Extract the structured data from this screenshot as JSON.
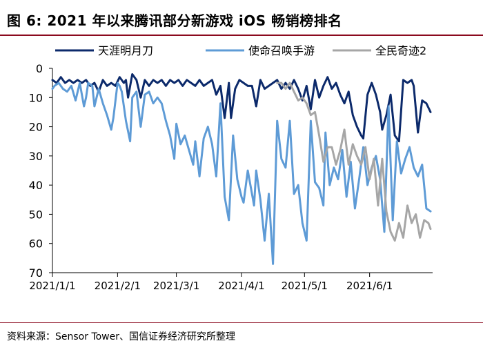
{
  "title": "图 6:  2021 年以来腾讯部分新游戏 iOS  畅销榜排名",
  "source": "资料来源：Sensor Tower、国信证券经济研究所整理",
  "chart_data": {
    "type": "line",
    "title": "",
    "xlabel": "",
    "ylabel": "",
    "x_range": [
      "2021-01-01",
      "2021-07-01"
    ],
    "x_ticks": [
      "2021/1/1",
      "2021/2/1",
      "2021/3/1",
      "2021/4/1",
      "2021/5/1",
      "2021/6/1"
    ],
    "y_ticks": [
      0,
      10,
      20,
      30,
      40,
      50,
      60,
      70
    ],
    "ylim": [
      0,
      70
    ],
    "y_inverted": true,
    "legend_position": "top",
    "series": [
      {
        "name": "天涯明月刀",
        "color": "#0c2a6b",
        "points": [
          [
            "2021-01-01",
            4
          ],
          [
            "2021-01-03",
            5
          ],
          [
            "2021-01-05",
            3
          ],
          [
            "2021-01-07",
            5
          ],
          [
            "2021-01-09",
            4
          ],
          [
            "2021-01-11",
            5
          ],
          [
            "2021-01-13",
            4
          ],
          [
            "2021-01-15",
            5
          ],
          [
            "2021-01-17",
            4
          ],
          [
            "2021-01-19",
            6
          ],
          [
            "2021-01-21",
            5
          ],
          [
            "2021-01-23",
            8
          ],
          [
            "2021-01-25",
            4
          ],
          [
            "2021-01-27",
            6
          ],
          [
            "2021-01-29",
            5
          ],
          [
            "2021-01-31",
            6
          ],
          [
            "2021-02-02",
            3
          ],
          [
            "2021-02-04",
            5
          ],
          [
            "2021-02-05",
            4
          ],
          [
            "2021-02-06",
            10
          ],
          [
            "2021-02-08",
            2
          ],
          [
            "2021-02-10",
            4
          ],
          [
            "2021-02-12",
            10
          ],
          [
            "2021-02-14",
            4
          ],
          [
            "2021-02-16",
            6
          ],
          [
            "2021-02-18",
            4
          ],
          [
            "2021-02-20",
            5
          ],
          [
            "2021-02-22",
            4
          ],
          [
            "2021-02-24",
            6
          ],
          [
            "2021-02-26",
            4
          ],
          [
            "2021-02-28",
            5
          ],
          [
            "2021-03-02",
            4
          ],
          [
            "2021-03-04",
            6
          ],
          [
            "2021-03-06",
            4
          ],
          [
            "2021-03-08",
            5
          ],
          [
            "2021-03-10",
            6
          ],
          [
            "2021-03-12",
            4
          ],
          [
            "2021-03-14",
            6
          ],
          [
            "2021-03-16",
            5
          ],
          [
            "2021-03-18",
            4
          ],
          [
            "2021-03-20",
            9
          ],
          [
            "2021-03-22",
            6
          ],
          [
            "2021-03-24",
            17
          ],
          [
            "2021-03-26",
            5
          ],
          [
            "2021-03-27",
            17
          ],
          [
            "2021-03-29",
            7
          ],
          [
            "2021-03-31",
            4
          ],
          [
            "2021-04-02",
            5
          ],
          [
            "2021-04-04",
            6
          ],
          [
            "2021-04-06",
            6
          ],
          [
            "2021-04-08",
            13
          ],
          [
            "2021-04-10",
            4
          ],
          [
            "2021-04-12",
            7
          ],
          [
            "2021-04-14",
            6
          ],
          [
            "2021-04-16",
            5
          ],
          [
            "2021-04-18",
            4
          ],
          [
            "2021-04-20",
            7
          ],
          [
            "2021-04-22",
            5
          ],
          [
            "2021-04-24",
            7
          ],
          [
            "2021-04-26",
            4
          ],
          [
            "2021-04-28",
            7
          ],
          [
            "2021-04-30",
            11
          ],
          [
            "2021-05-02",
            6
          ],
          [
            "2021-05-04",
            14
          ],
          [
            "2021-05-06",
            4
          ],
          [
            "2021-05-08",
            10
          ],
          [
            "2021-05-10",
            6
          ],
          [
            "2021-05-12",
            3
          ],
          [
            "2021-05-14",
            7
          ],
          [
            "2021-05-16",
            5
          ],
          [
            "2021-05-18",
            9
          ],
          [
            "2021-05-20",
            12
          ],
          [
            "2021-05-22",
            8
          ],
          [
            "2021-05-24",
            16
          ],
          [
            "2021-05-26",
            20
          ],
          [
            "2021-05-28",
            23
          ],
          [
            "2021-05-29",
            24
          ],
          [
            "2021-05-31",
            9
          ],
          [
            "2021-06-02",
            5
          ],
          [
            "2021-06-04",
            9
          ],
          [
            "2021-06-06",
            15
          ],
          [
            "2021-06-07",
            21
          ],
          [
            "2021-06-09",
            16
          ],
          [
            "2021-06-11",
            9
          ],
          [
            "2021-06-13",
            23
          ],
          [
            "2021-06-15",
            25
          ],
          [
            "2021-06-17",
            4
          ],
          [
            "2021-06-19",
            5
          ],
          [
            "2021-06-21",
            4
          ],
          [
            "2021-06-22",
            6
          ],
          [
            "2021-06-24",
            22
          ],
          [
            "2021-06-26",
            11
          ],
          [
            "2021-06-28",
            12
          ],
          [
            "2021-06-30",
            15
          ]
        ]
      },
      {
        "name": "使命召唤手游",
        "color": "#5e9bd6",
        "points": [
          [
            "2021-01-01",
            7
          ],
          [
            "2021-01-02",
            6
          ],
          [
            "2021-01-04",
            5
          ],
          [
            "2021-01-06",
            7
          ],
          [
            "2021-01-08",
            8
          ],
          [
            "2021-01-10",
            6
          ],
          [
            "2021-01-12",
            11
          ],
          [
            "2021-01-14",
            5
          ],
          [
            "2021-01-16",
            13
          ],
          [
            "2021-01-17",
            10
          ],
          [
            "2021-01-18",
            5
          ],
          [
            "2021-01-20",
            6
          ],
          [
            "2021-01-21",
            13
          ],
          [
            "2021-01-23",
            7
          ],
          [
            "2021-01-25",
            12
          ],
          [
            "2021-01-27",
            16
          ],
          [
            "2021-01-29",
            21
          ],
          [
            "2021-01-30",
            17
          ],
          [
            "2021-02-01",
            5
          ],
          [
            "2021-02-02",
            6
          ],
          [
            "2021-02-03",
            8
          ],
          [
            "2021-02-05",
            18
          ],
          [
            "2021-02-07",
            25
          ],
          [
            "2021-02-08",
            10
          ],
          [
            "2021-02-10",
            8
          ],
          [
            "2021-02-12",
            20
          ],
          [
            "2021-02-14",
            9
          ],
          [
            "2021-02-16",
            8
          ],
          [
            "2021-02-18",
            12
          ],
          [
            "2021-02-20",
            10
          ],
          [
            "2021-02-22",
            12
          ],
          [
            "2021-02-24",
            18
          ],
          [
            "2021-02-26",
            23
          ],
          [
            "2021-02-28",
            31
          ],
          [
            "2021-03-01",
            19
          ],
          [
            "2021-03-03",
            26
          ],
          [
            "2021-03-05",
            23
          ],
          [
            "2021-03-07",
            28
          ],
          [
            "2021-03-09",
            33
          ],
          [
            "2021-03-10",
            25
          ],
          [
            "2021-03-12",
            37
          ],
          [
            "2021-03-14",
            24
          ],
          [
            "2021-03-16",
            20
          ],
          [
            "2021-03-18",
            26
          ],
          [
            "2021-03-20",
            37
          ],
          [
            "2021-03-22",
            12
          ],
          [
            "2021-03-24",
            44
          ],
          [
            "2021-03-26",
            52
          ],
          [
            "2021-03-28",
            23
          ],
          [
            "2021-03-30",
            38
          ],
          [
            "2021-04-01",
            44
          ],
          [
            "2021-04-02",
            46
          ],
          [
            "2021-04-04",
            35
          ],
          [
            "2021-04-06",
            43
          ],
          [
            "2021-04-07",
            47
          ],
          [
            "2021-04-08",
            35
          ],
          [
            "2021-04-10",
            45
          ],
          [
            "2021-04-12",
            59
          ],
          [
            "2021-04-14",
            43
          ],
          [
            "2021-04-16",
            67
          ],
          [
            "2021-04-18",
            18
          ],
          [
            "2021-04-20",
            31
          ],
          [
            "2021-04-22",
            34
          ],
          [
            "2021-04-24",
            18
          ],
          [
            "2021-04-26",
            43
          ],
          [
            "2021-04-28",
            40
          ],
          [
            "2021-04-30",
            53
          ],
          [
            "2021-05-02",
            59
          ],
          [
            "2021-05-04",
            18
          ],
          [
            "2021-05-06",
            39
          ],
          [
            "2021-05-08",
            41
          ],
          [
            "2021-05-10",
            47
          ],
          [
            "2021-05-11",
            22
          ],
          [
            "2021-05-13",
            40
          ],
          [
            "2021-05-15",
            34
          ],
          [
            "2021-05-17",
            38
          ],
          [
            "2021-05-19",
            28
          ],
          [
            "2021-05-21",
            44
          ],
          [
            "2021-05-23",
            32
          ],
          [
            "2021-05-25",
            48
          ],
          [
            "2021-05-27",
            38
          ],
          [
            "2021-05-29",
            27
          ],
          [
            "2021-05-31",
            40
          ],
          [
            "2021-06-02",
            34
          ],
          [
            "2021-06-04",
            30
          ],
          [
            "2021-06-06",
            38
          ],
          [
            "2021-06-08",
            56
          ],
          [
            "2021-06-10",
            13
          ],
          [
            "2021-06-12",
            52
          ],
          [
            "2021-06-14",
            25
          ],
          [
            "2021-06-16",
            36
          ],
          [
            "2021-06-18",
            31
          ],
          [
            "2021-06-20",
            27
          ],
          [
            "2021-06-22",
            34
          ],
          [
            "2021-06-24",
            37
          ],
          [
            "2021-06-26",
            33
          ],
          [
            "2021-06-28",
            48
          ],
          [
            "2021-06-30",
            49
          ]
        ]
      },
      {
        "name": "全民奇迹2",
        "color": "#a6a6a6",
        "points": [
          [
            "2021-04-18",
            5
          ],
          [
            "2021-04-20",
            5
          ],
          [
            "2021-04-22",
            7
          ],
          [
            "2021-04-24",
            5
          ],
          [
            "2021-04-26",
            8
          ],
          [
            "2021-04-28",
            11
          ],
          [
            "2021-04-30",
            10
          ],
          [
            "2021-05-02",
            12
          ],
          [
            "2021-05-04",
            16
          ],
          [
            "2021-05-06",
            15
          ],
          [
            "2021-05-08",
            23
          ],
          [
            "2021-05-10",
            32
          ],
          [
            "2021-05-12",
            27
          ],
          [
            "2021-05-14",
            27
          ],
          [
            "2021-05-16",
            33
          ],
          [
            "2021-05-18",
            28
          ],
          [
            "2021-05-20",
            21
          ],
          [
            "2021-05-22",
            33
          ],
          [
            "2021-05-24",
            26
          ],
          [
            "2021-05-26",
            30
          ],
          [
            "2021-05-28",
            33
          ],
          [
            "2021-05-30",
            27
          ],
          [
            "2021-06-01",
            38
          ],
          [
            "2021-06-03",
            31
          ],
          [
            "2021-06-05",
            47
          ],
          [
            "2021-06-07",
            31
          ],
          [
            "2021-06-09",
            49
          ],
          [
            "2021-06-11",
            56
          ],
          [
            "2021-06-13",
            59
          ],
          [
            "2021-06-15",
            53
          ],
          [
            "2021-06-17",
            58
          ],
          [
            "2021-06-19",
            47
          ],
          [
            "2021-06-21",
            53
          ],
          [
            "2021-06-23",
            50
          ],
          [
            "2021-06-25",
            58
          ],
          [
            "2021-06-27",
            52
          ],
          [
            "2021-06-29",
            53
          ],
          [
            "2021-06-30",
            55
          ]
        ]
      }
    ]
  }
}
